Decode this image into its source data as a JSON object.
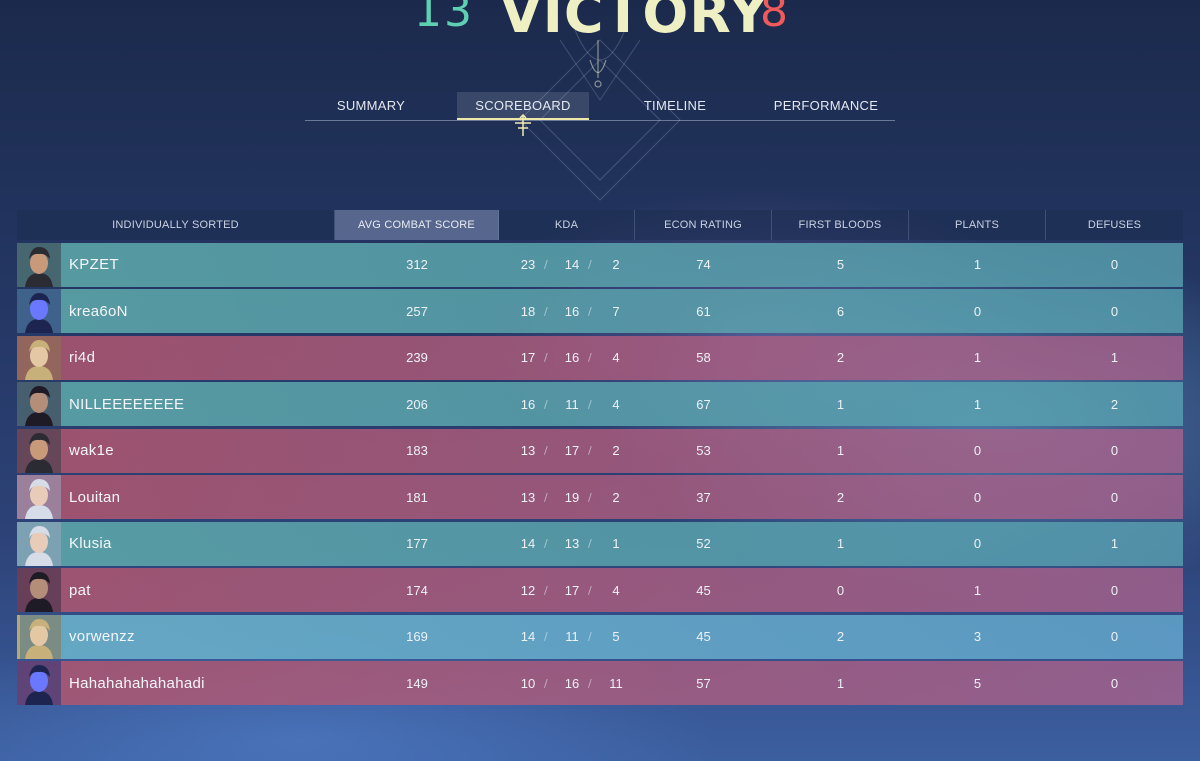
{
  "header": {
    "ally_score": "13",
    "result": "VICTORY",
    "enemy_score": "8"
  },
  "tabs": [
    {
      "label": "SUMMARY",
      "active": false
    },
    {
      "label": "SCOREBOARD",
      "active": true
    },
    {
      "label": "TIMELINE",
      "active": false
    },
    {
      "label": "PERFORMANCE",
      "active": false
    }
  ],
  "columns": {
    "sort": "INDIVIDUALLY SORTED",
    "acs": "AVG COMBAT SCORE",
    "kda": "KDA",
    "econ": "ECON RATING",
    "first_bloods": "FIRST BLOODS",
    "plants": "PLANTS",
    "defuses": "DEFUSES"
  },
  "colors": {
    "ally": "#5da8aa",
    "enemy": "#b0566e",
    "ally_score": "#5fcfb2",
    "enemy_score": "#ef5a5a",
    "victory": "#eef0c4"
  },
  "players": [
    {
      "name": "KPZET",
      "team": "ally",
      "agent_icon": "agent-portrait-dark-hair-visor",
      "acs": "312",
      "k": "23",
      "d": "14",
      "a": "2",
      "econ": "74",
      "fb": "5",
      "plants": "1",
      "defuses": "0"
    },
    {
      "name": "krea6oN",
      "team": "ally",
      "agent_icon": "agent-portrait-blue-mask",
      "acs": "257",
      "k": "18",
      "d": "16",
      "a": "7",
      "econ": "61",
      "fb": "6",
      "plants": "0",
      "defuses": "0"
    },
    {
      "name": "ri4d",
      "team": "enemy",
      "agent_icon": "agent-portrait-blonde",
      "acs": "239",
      "k": "17",
      "d": "16",
      "a": "4",
      "econ": "58",
      "fb": "2",
      "plants": "1",
      "defuses": "1"
    },
    {
      "name": "NILLEEEEEEEE",
      "team": "ally",
      "agent_icon": "agent-portrait-dark-mask",
      "acs": "206",
      "k": "16",
      "d": "11",
      "a": "4",
      "econ": "67",
      "fb": "1",
      "plants": "1",
      "defuses": "2"
    },
    {
      "name": "wak1e",
      "team": "enemy",
      "agent_icon": "agent-portrait-dark-hair-visor",
      "acs": "183",
      "k": "13",
      "d": "17",
      "a": "2",
      "econ": "53",
      "fb": "1",
      "plants": "0",
      "defuses": "0"
    },
    {
      "name": "Louitan",
      "team": "enemy",
      "agent_icon": "agent-portrait-white-hair",
      "acs": "181",
      "k": "13",
      "d": "19",
      "a": "2",
      "econ": "37",
      "fb": "2",
      "plants": "0",
      "defuses": "0"
    },
    {
      "name": "Klusia",
      "team": "ally",
      "agent_icon": "agent-portrait-white-hair",
      "acs": "177",
      "k": "14",
      "d": "13",
      "a": "1",
      "econ": "52",
      "fb": "1",
      "plants": "0",
      "defuses": "1"
    },
    {
      "name": "pat",
      "team": "enemy",
      "agent_icon": "agent-portrait-dark-mask",
      "acs": "174",
      "k": "12",
      "d": "17",
      "a": "4",
      "econ": "45",
      "fb": "0",
      "plants": "1",
      "defuses": "0"
    },
    {
      "name": "vorwenzz",
      "team": "ally",
      "self": true,
      "agent_icon": "agent-portrait-blonde",
      "acs": "169",
      "k": "14",
      "d": "11",
      "a": "5",
      "econ": "45",
      "fb": "2",
      "plants": "3",
      "defuses": "0"
    },
    {
      "name": "Hahahahahahahadi",
      "team": "enemy",
      "agent_icon": "agent-portrait-blue-mask",
      "acs": "149",
      "k": "10",
      "d": "16",
      "a": "11",
      "econ": "57",
      "fb": "1",
      "plants": "5",
      "defuses": "0"
    }
  ]
}
